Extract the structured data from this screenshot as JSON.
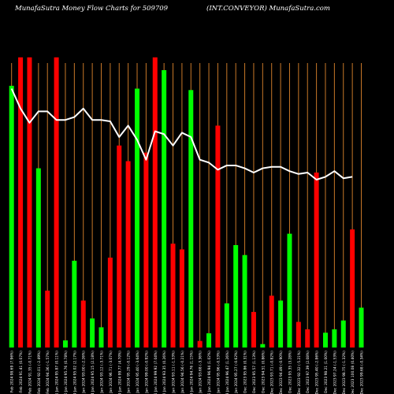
{
  "chart_data": {
    "type": "bar",
    "title_left": "MunafaSutra  Money Flow  Charts for 509709",
    "title_right": "(INT.CONVEYOR) MunafaSutra.com",
    "colors": {
      "up": "#00ff00",
      "down": "#ff0000",
      "grid": "#c87828",
      "line": "#ffffff",
      "background": "#000000"
    },
    "ylim": [
      0,
      100
    ],
    "bars": [
      {
        "label": "07 Feb 2024 98.69 (7.96%)",
        "value": 92,
        "color": "up"
      },
      {
        "label": "06 Feb 2024 91.41 (0.07%)",
        "value": 102,
        "color": "down"
      },
      {
        "label": "05 Feb 2024 91.35 (-0.71%)",
        "value": 102,
        "color": "down"
      },
      {
        "label": "02 Feb 2024 92.01 (-2.49%)",
        "value": 63,
        "color": "up"
      },
      {
        "label": "01 Feb 2024 94.36 (-1.57%)",
        "value": 20,
        "color": "down"
      },
      {
        "label": "31 Jan 2024 95.87 (0.11%)",
        "value": 102,
        "color": "down"
      },
      {
        "label": "30 Jan 2024 95.76 (0.78%)",
        "value": 2.5,
        "color": "up"
      },
      {
        "label": "29 Jan 2024 95.02 (2.17%)",
        "value": 30.5,
        "color": "up"
      },
      {
        "label": "25 Jan 2024 93.00 (-2.26%)",
        "value": 16.5,
        "color": "down"
      },
      {
        "label": "24 Jan 2024 95.15 (2.18%)",
        "value": 10.2,
        "color": "up"
      },
      {
        "label": "23 Jan 2024 93.12 (-3.71%)",
        "value": 7.1,
        "color": "up"
      },
      {
        "label": "22 Jan 2024 96.71 (-3.07%)",
        "value": 31.6,
        "color": "down"
      },
      {
        "label": "19 Jan 2024 99.77 (4.70%)",
        "value": 71,
        "color": "down"
      },
      {
        "label": "18 Jan 2024 95.29 (-0.12%)",
        "value": 65.5,
        "color": "down"
      },
      {
        "label": "17 Jan 2024 95.40 (-3.64%)",
        "value": 91,
        "color": "up"
      },
      {
        "label": "16 Jan 2024 99.00 (-0.92%)",
        "value": 68.5,
        "color": "down"
      },
      {
        "label": "15 Jan 2024 99.92 (7.04%)",
        "value": 102,
        "color": "down"
      },
      {
        "label": "12 Jan 2024 93.35 (0.26%)",
        "value": 97.5,
        "color": "up"
      },
      {
        "label": "11 Jan 2024 93.11 (-1.53%)",
        "value": 36.5,
        "color": "down"
      },
      {
        "label": "10 Jan 2024 94.56 (-0.21%)",
        "value": 34.5,
        "color": "down"
      },
      {
        "label": "09 Jan 2024 94.76 (1.15%)",
        "value": 90.5,
        "color": "up"
      },
      {
        "label": "08 Jan 2024 93.68 (-3.36%)",
        "value": 2.3,
        "color": "down"
      },
      {
        "label": "05 Jan 2024 96.94 (1.02%)",
        "value": 5,
        "color": "up"
      },
      {
        "label": "04 Jan 2024 95.96 (-0.53%)",
        "value": 78,
        "color": "down"
      },
      {
        "label": "03 Jan 2024 96.47 (1.26%)",
        "value": 15.5,
        "color": "up"
      },
      {
        "label": "02 Jan 2024 95.27 (-0.62%)",
        "value": 36,
        "color": "up"
      },
      {
        "label": "29 Dec 2023 95.86 (0.31%)",
        "value": 32.5,
        "color": "up"
      },
      {
        "label": "28 Dec 2023 95.57 (1.13%)",
        "value": 12.5,
        "color": "down"
      },
      {
        "label": "27 Dec 2023 94.51 (0.86%)",
        "value": 1.2,
        "color": "up"
      },
      {
        "label": "26 Dec 2023 93.71 (-0.82%)",
        "value": 18.2,
        "color": "down"
      },
      {
        "label": "22 Dec 2023 94.49 (-0.90%)",
        "value": 16.5,
        "color": "up"
      },
      {
        "label": "21 Dec 2023 95.35 (3.28%)",
        "value": 40,
        "color": "up"
      },
      {
        "label": "20 Dec 2023 92.32 (-5.21%)",
        "value": 9,
        "color": "down"
      },
      {
        "label": "19 Dec 2023 97.39 (2.08%)",
        "value": 6.4,
        "color": "down"
      },
      {
        "label": "18 Dec 2023 95.40 (-2.86%)",
        "value": 61.5,
        "color": "down"
      },
      {
        "label": "15 Dec 2023 98.21 (1.00%)",
        "value": 5.2,
        "color": "up"
      },
      {
        "label": "14 Dec 2023 97.24 (-1.53%)",
        "value": 6.4,
        "color": "up"
      },
      {
        "label": "13 Dec 2023 98.75 (-1.32%)",
        "value": 9.5,
        "color": "up"
      },
      {
        "label": "12 Dec 2023 100.08 (0.40%)",
        "value": 41.5,
        "color": "down"
      },
      {
        "label": "11 Dec 2023 99.68 (-0.34%)",
        "value": 14,
        "color": "up"
      }
    ],
    "line": [
      91,
      84,
      79,
      83,
      83,
      80,
      80,
      81,
      84,
      80,
      80,
      79.5,
      74,
      78,
      73,
      66,
      76,
      75,
      71,
      75.5,
      74,
      66,
      65,
      62.5,
      64,
      64,
      63,
      61.5,
      63,
      63.5,
      63.5,
      62,
      61,
      61.5,
      59,
      60,
      62,
      59.5,
      60
    ]
  }
}
